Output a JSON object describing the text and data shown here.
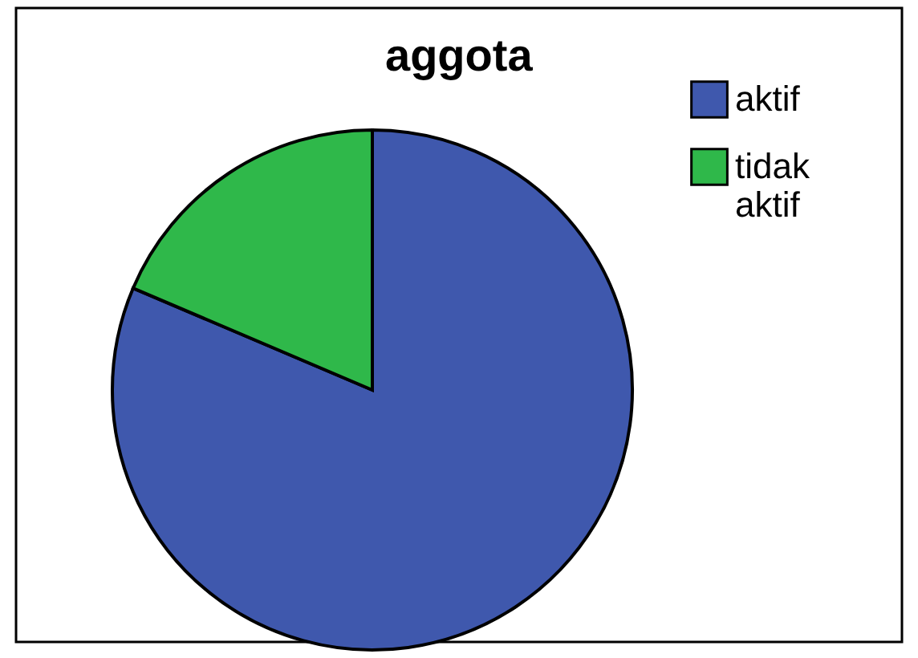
{
  "chart_data": {
    "type": "pie",
    "title": "aggota",
    "categories": [
      "aktif",
      "tidak aktif"
    ],
    "values": [
      81.4,
      18.6
    ],
    "colors": [
      "#3f58ad",
      "#2fb84a"
    ],
    "legend": "top right"
  }
}
